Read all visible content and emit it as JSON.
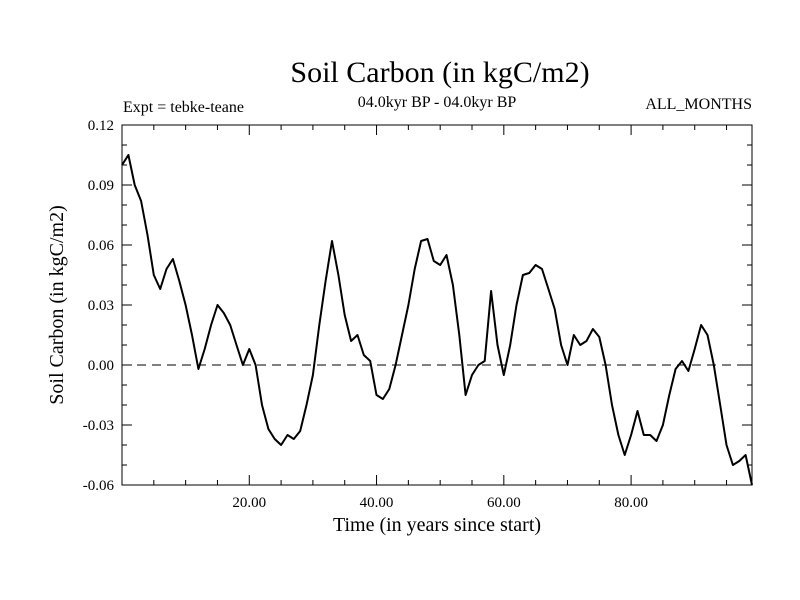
{
  "chart_data": {
    "type": "line",
    "title": "Soil Carbon (in kgC/m2)",
    "subtitle": "04.0kyr BP - 04.0kyr BP",
    "left_label": "Expt = tebke-teane",
    "right_label": "ALL_MONTHS",
    "xlabel": "Time (in years since start)",
    "ylabel": "Soil Carbon (in kgC/m2)",
    "xlim": [
      0,
      99
    ],
    "ylim": [
      -0.06,
      0.12
    ],
    "x_ticks": [
      20,
      40,
      60,
      80
    ],
    "x_tick_labels": [
      "20.00",
      "40.00",
      "60.00",
      "80.00"
    ],
    "y_ticks": [
      -0.06,
      -0.03,
      0.0,
      0.03,
      0.06,
      0.09,
      0.12
    ],
    "y_tick_labels": [
      "-0.06",
      "-0.03",
      "0.00",
      "0.03",
      "0.06",
      "0.09",
      "0.12"
    ],
    "reference_line": 0.0,
    "series": [
      {
        "name": "Soil Carbon",
        "x": [
          0,
          1,
          2,
          3,
          4,
          5,
          6,
          7,
          8,
          9,
          10,
          11,
          12,
          13,
          14,
          15,
          16,
          17,
          18,
          19,
          20,
          21,
          22,
          23,
          24,
          25,
          26,
          27,
          28,
          29,
          30,
          31,
          32,
          33,
          34,
          35,
          36,
          37,
          38,
          39,
          40,
          41,
          42,
          43,
          44,
          45,
          46,
          47,
          48,
          49,
          50,
          51,
          52,
          53,
          54,
          55,
          56,
          57,
          58,
          59,
          60,
          61,
          62,
          63,
          64,
          65,
          66,
          67,
          68,
          69,
          70,
          71,
          72,
          73,
          74,
          75,
          76,
          77,
          78,
          79,
          80,
          81,
          82,
          83,
          84,
          85,
          86,
          87,
          88,
          89,
          90,
          91,
          92,
          93,
          94,
          95,
          96,
          97,
          98,
          99
        ],
        "values": [
          0.1,
          0.105,
          0.09,
          0.082,
          0.065,
          0.045,
          0.038,
          0.048,
          0.053,
          0.042,
          0.03,
          0.015,
          -0.002,
          0.008,
          0.02,
          0.03,
          0.026,
          0.02,
          0.01,
          0.0,
          0.008,
          0.0,
          -0.02,
          -0.032,
          -0.037,
          -0.04,
          -0.035,
          -0.037,
          -0.033,
          -0.02,
          -0.005,
          0.02,
          0.042,
          0.062,
          0.045,
          0.025,
          0.012,
          0.015,
          0.005,
          0.002,
          -0.015,
          -0.017,
          -0.012,
          0.0,
          0.015,
          0.03,
          0.048,
          0.062,
          0.063,
          0.052,
          0.05,
          0.055,
          0.04,
          0.015,
          -0.015,
          -0.005,
          0.0,
          0.002,
          0.037,
          0.01,
          -0.005,
          0.01,
          0.03,
          0.045,
          0.046,
          0.05,
          0.048,
          0.038,
          0.028,
          0.01,
          0.0,
          0.015,
          0.01,
          0.012,
          0.018,
          0.014,
          0.0,
          -0.02,
          -0.035,
          -0.045,
          -0.035,
          -0.023,
          -0.035,
          -0.035,
          -0.038,
          -0.03,
          -0.015,
          -0.002,
          0.002,
          -0.003,
          0.008,
          0.02,
          0.015,
          0.0,
          -0.02,
          -0.04,
          -0.05,
          -0.048,
          -0.045,
          -0.06
        ]
      }
    ]
  }
}
